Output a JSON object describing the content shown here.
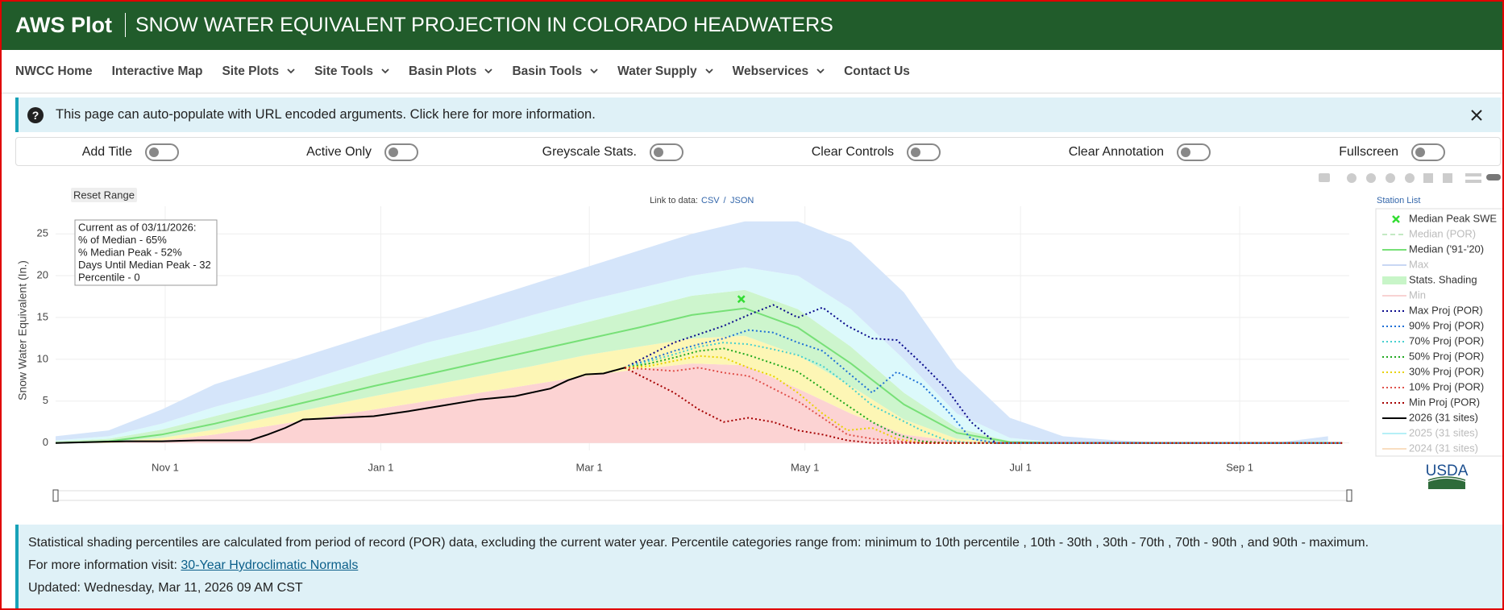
{
  "header": {
    "brand": "AWS Plot",
    "title": "SNOW WATER EQUIVALENT PROJECTION IN COLORADO HEADWATERS"
  },
  "nav": [
    {
      "label": "NWCC Home",
      "dropdown": false
    },
    {
      "label": "Interactive Map",
      "dropdown": false
    },
    {
      "label": "Site Plots",
      "dropdown": true
    },
    {
      "label": "Site Tools",
      "dropdown": true
    },
    {
      "label": "Basin Plots",
      "dropdown": true
    },
    {
      "label": "Basin Tools",
      "dropdown": true
    },
    {
      "label": "Water Supply",
      "dropdown": true
    },
    {
      "label": "Webservices",
      "dropdown": true
    },
    {
      "label": "Contact Us",
      "dropdown": false
    }
  ],
  "banner": {
    "text": "This page can auto-populate with URL encoded arguments. Click here for more information."
  },
  "toggles": [
    "Add Title",
    "Active Only",
    "Greyscale Stats.",
    "Clear Controls",
    "Clear Annotation",
    "Fullscreen"
  ],
  "controls": {
    "reset": "Reset Range",
    "link_label": "Link to data:",
    "csv": "CSV",
    "separator": "/",
    "json": "JSON",
    "station_list": "Station List",
    "logo": "USDA"
  },
  "chart_data": {
    "type": "line",
    "y_label": "Snow Water Equivalent (In.)",
    "annotation": [
      "Current as of 03/11/2026:",
      "% of Median - 65%",
      "% Median Peak - 52%",
      "Days Until Median Peak - 32",
      "Percentile - 0"
    ],
    "xlim": [
      0,
      366
    ],
    "ylim": [
      -0.9,
      28.3
    ],
    "xticks": [
      {
        "value": 31,
        "label": "Nov 1"
      },
      {
        "value": 92,
        "label": "Jan 1"
      },
      {
        "value": 151,
        "label": "Mar 1"
      },
      {
        "value": 212,
        "label": "May 1"
      },
      {
        "value": 273,
        "label": "Jul 1"
      },
      {
        "value": 335,
        "label": "Sep 1"
      }
    ],
    "yticks": [
      0,
      5,
      10,
      15,
      20,
      25
    ],
    "grid": true,
    "legend": "right",
    "series": [
      {
        "name": "Median Peak SWE",
        "mode": "markers",
        "color": "#33dd33",
        "x": [
          194
        ],
        "values": [
          17.2
        ]
      },
      {
        "name": "Median (POR)",
        "mode": "lines",
        "dash": "dash",
        "color": "#7bcf7b",
        "visible": false
      },
      {
        "name": "Median ('91-'20)",
        "mode": "lines",
        "dash": "solid",
        "color": "#77e077",
        "x": [
          0,
          15,
          30,
          45,
          60,
          75,
          90,
          105,
          120,
          135,
          150,
          165,
          180,
          195,
          210,
          225,
          240,
          255,
          270,
          285,
          300,
          315,
          330,
          345,
          360
        ],
        "values": [
          0,
          0.2,
          1,
          2.3,
          3.8,
          5.3,
          6.8,
          8.2,
          9.6,
          11,
          12.4,
          13.8,
          15.3,
          16.1,
          13.8,
          9.5,
          4.6,
          1.2,
          0.1,
          0,
          0,
          0,
          0,
          0,
          0
        ]
      },
      {
        "name": "Max",
        "mode": "lines",
        "dash": "solid",
        "color": "#8aa8e8",
        "visible": false
      },
      {
        "name": "Stats. Shading",
        "mode": "bands",
        "color": "#c8f5c8",
        "band_colors": [
          "#fcd3d3",
          "#fdf6b5",
          "#cdf5cd",
          "#dcf9fb",
          "#d5e5fa"
        ],
        "x": [
          0,
          15,
          30,
          45,
          60,
          75,
          90,
          105,
          120,
          135,
          150,
          165,
          180,
          195,
          210,
          225,
          240,
          255,
          270,
          285,
          300,
          315,
          330,
          345,
          360
        ],
        "levels": [
          [
            0,
            0,
            0,
            0,
            0,
            0,
            0,
            0,
            0,
            0,
            0,
            0,
            0,
            0,
            0,
            0,
            0,
            0,
            0,
            0,
            0,
            0,
            0,
            0,
            0
          ],
          [
            0,
            0,
            0.3,
            1,
            2,
            3,
            4,
            5,
            6,
            7,
            8,
            8.8,
            9.5,
            9.3,
            6.5,
            3.5,
            1,
            0.2,
            0,
            0,
            0,
            0,
            0,
            0,
            0
          ],
          [
            0,
            0.1,
            0.6,
            1.6,
            3,
            4.3,
            5.6,
            6.8,
            8,
            9.2,
            10.5,
            11.5,
            12.5,
            12.8,
            10.5,
            6.8,
            2.8,
            0.5,
            0,
            0,
            0,
            0,
            0,
            0,
            0
          ],
          [
            0.2,
            0.5,
            1.6,
            3.2,
            4.8,
            6.5,
            8.2,
            9.8,
            11.3,
            12.8,
            14.4,
            16,
            17.6,
            18.3,
            16,
            11.5,
            6,
            1.8,
            0.2,
            0,
            0,
            0,
            0,
            0,
            0
          ],
          [
            0.3,
            0.8,
            2.3,
            4.3,
            6,
            8,
            10,
            12,
            13.5,
            15.3,
            17,
            18.5,
            20,
            21,
            20,
            16,
            10,
            3.5,
            0.6,
            0,
            0,
            0,
            0,
            0,
            0.3
          ],
          [
            0.8,
            1.5,
            4,
            7,
            9,
            11,
            13,
            15,
            17,
            19,
            21,
            23,
            25,
            26.5,
            26.5,
            24,
            18,
            9,
            3,
            0.8,
            0.3,
            0,
            0,
            0,
            0.8
          ]
        ]
      },
      {
        "name": "Min",
        "mode": "lines",
        "dash": "solid",
        "color": "#f0a0a0",
        "visible": false
      },
      {
        "name": "Max Proj (POR)",
        "mode": "lines",
        "dash": "dot",
        "color": "#0a0a8c",
        "x": [
          161,
          168,
          175,
          182,
          189,
          196,
          203,
          210,
          217,
          224,
          231,
          238,
          245,
          252,
          259,
          266,
          290,
          320,
          364
        ],
        "values": [
          9,
          10.5,
          12,
          13,
          14,
          15.3,
          16.5,
          15,
          16.2,
          14,
          12.5,
          12.3,
          9.5,
          6.5,
          2.5,
          0,
          0,
          0,
          0
        ]
      },
      {
        "name": "90% Proj (POR)",
        "mode": "lines",
        "dash": "dot",
        "color": "#1f6fd6",
        "x": [
          161,
          168,
          175,
          182,
          189,
          196,
          203,
          210,
          217,
          224,
          231,
          238,
          245,
          252,
          259,
          266,
          290,
          320,
          364
        ],
        "values": [
          9,
          10,
          11,
          11.8,
          12.5,
          13.5,
          13.2,
          12,
          11,
          8.5,
          6,
          8.5,
          7,
          4,
          0.5,
          0,
          0,
          0,
          0
        ]
      },
      {
        "name": "70% Proj (POR)",
        "mode": "lines",
        "dash": "dot",
        "color": "#45cfcf",
        "x": [
          161,
          168,
          175,
          182,
          189,
          196,
          203,
          210,
          217,
          224,
          231,
          238,
          245,
          252,
          259,
          266,
          290,
          320,
          364
        ],
        "values": [
          9,
          9.8,
          10.6,
          11.5,
          12,
          11.8,
          11.2,
          10.5,
          9.2,
          7,
          4.5,
          3,
          1.5,
          0.3,
          0,
          0,
          0,
          0,
          0
        ]
      },
      {
        "name": "50% Proj (POR)",
        "mode": "lines",
        "dash": "dot",
        "color": "#1fa81f",
        "x": [
          161,
          168,
          175,
          182,
          189,
          196,
          203,
          210,
          217,
          224,
          231,
          238,
          245,
          252,
          259,
          266,
          290,
          320,
          364
        ],
        "values": [
          9,
          9.5,
          10.2,
          11,
          11.3,
          10.5,
          9.5,
          8.5,
          6.5,
          4.5,
          2.5,
          1,
          0.2,
          0,
          0,
          0,
          0,
          0,
          0
        ]
      },
      {
        "name": "30% Proj (POR)",
        "mode": "lines",
        "dash": "dot",
        "color": "#e8d200",
        "x": [
          161,
          168,
          175,
          182,
          189,
          196,
          203,
          210,
          217,
          224,
          231,
          238,
          245,
          252,
          259,
          266,
          290,
          320,
          364
        ],
        "values": [
          9,
          9.2,
          9.8,
          10.4,
          10.2,
          9,
          8,
          6,
          3.5,
          1.5,
          1.8,
          0.5,
          0,
          0,
          0,
          0,
          0,
          0,
          0
        ]
      },
      {
        "name": "10% Proj (POR)",
        "mode": "lines",
        "dash": "dot",
        "color": "#e0504a",
        "x": [
          161,
          168,
          175,
          182,
          189,
          196,
          203,
          210,
          217,
          224,
          231,
          238,
          245,
          252,
          259,
          266,
          290,
          320,
          364
        ],
        "values": [
          9,
          8.8,
          8.6,
          9,
          8.4,
          8,
          6.5,
          5,
          3,
          1,
          0.5,
          0.2,
          0,
          0,
          0,
          0,
          0,
          0,
          0
        ]
      },
      {
        "name": "Min Proj (POR)",
        "mode": "lines",
        "dash": "dot",
        "color": "#a50000",
        "x": [
          161,
          168,
          175,
          182,
          189,
          196,
          203,
          210,
          217,
          224,
          231,
          238,
          245,
          252,
          259,
          266,
          290,
          320,
          364
        ],
        "values": [
          9,
          7.5,
          6,
          4,
          2.5,
          3,
          2.5,
          1.5,
          1,
          0.3,
          0,
          0,
          0,
          0,
          0,
          0,
          0,
          0,
          0
        ]
      },
      {
        "name": "2026 (31 sites)",
        "mode": "lines",
        "dash": "solid",
        "color": "#000000",
        "x": [
          0,
          10,
          20,
          30,
          40,
          50,
          55,
          60,
          65,
          70,
          80,
          90,
          100,
          110,
          120,
          130,
          140,
          145,
          150,
          155,
          161
        ],
        "values": [
          0,
          0.1,
          0.2,
          0.2,
          0.3,
          0.3,
          0.3,
          1,
          1.8,
          2.8,
          3,
          3.2,
          3.8,
          4.5,
          5.2,
          5.6,
          6.5,
          7.5,
          8.2,
          8.3,
          9
        ]
      },
      {
        "name": "2025 (31 sites)",
        "mode": "lines",
        "dash": "solid",
        "color": "#5fe0ee",
        "visible": false
      },
      {
        "name": "2024 (31 sites)",
        "mode": "lines",
        "dash": "solid",
        "color": "#f2b878",
        "visible": false
      }
    ]
  },
  "footer": {
    "note": "Statistical shading percentiles are calculated from period of record (POR) data, excluding the current water year. Percentile categories range from: minimum to 10th percentile , 10th - 30th , 30th - 70th , 70th - 90th , and 90th - maximum.",
    "more_label": "For more information visit:",
    "more_link": "30-Year Hydroclimatic Normals",
    "updated": "Updated: Wednesday, Mar 11, 2026 09 AM CST"
  }
}
